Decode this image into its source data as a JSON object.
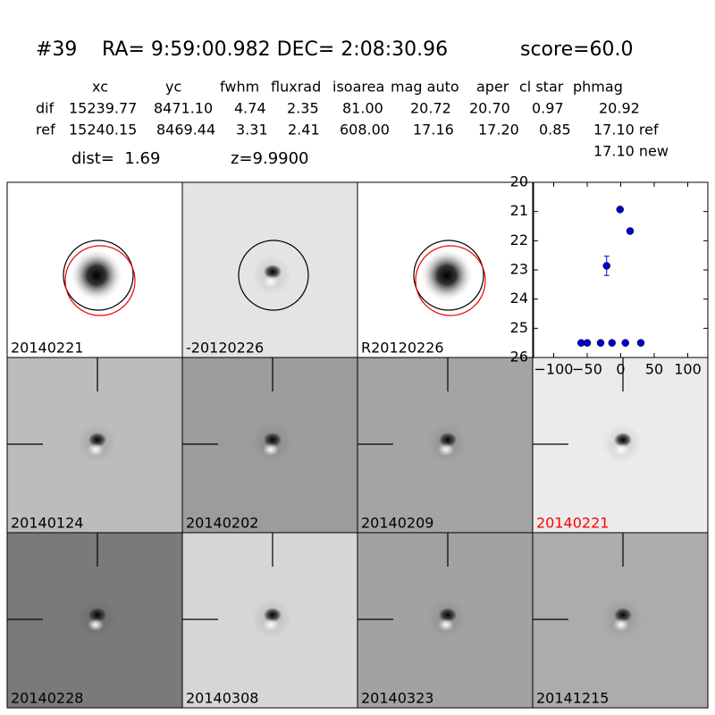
{
  "header": {
    "id": "#39",
    "coords": "RA= 9:59:00.982 DEC= 2:08:30.96",
    "score": "score=60.0"
  },
  "table": {
    "columns": [
      "xc",
      "yc",
      "fwhm",
      "fluxrad",
      "isoarea",
      "mag auto",
      "aper",
      "cl star",
      "phmag"
    ],
    "rows": [
      [
        "dif",
        "15239.77",
        "8471.10",
        "4.74",
        "2.35",
        "81.00",
        "20.72",
        "20.70",
        "0.97",
        "20.92"
      ],
      [
        "ref",
        "15240.15",
        "8469.44",
        "3.31",
        "2.41",
        "608.00",
        "17.16",
        "17.20",
        "0.85",
        "17.10 ref"
      ]
    ],
    "note": "17.10 new"
  },
  "dist": "dist=  1.69",
  "z": "z=9.9900",
  "panels": [
    {
      "label": "20140221"
    },
    {
      "label": "-20120226"
    },
    {
      "label": "R20120226"
    },
    {
      "label": "20140124"
    },
    {
      "label": "20140202"
    },
    {
      "label": "20140209"
    },
    {
      "label": "20140221",
      "color": "#ff0000"
    },
    {
      "label": "20140228"
    },
    {
      "label": "20140308"
    },
    {
      "label": "20140323"
    },
    {
      "label": "20141215"
    }
  ],
  "chart_data": {
    "type": "scatter",
    "color": "#0000cc",
    "x": [
      -59,
      -50,
      -30,
      -21,
      -13,
      -1,
      7,
      14,
      30
    ],
    "values": [
      25.5,
      25.5,
      25.5,
      22.86,
      25.5,
      20.93,
      25.5,
      21.67,
      25.5
    ],
    "errors": [
      null,
      null,
      null,
      0.33,
      null,
      null,
      null,
      0.08,
      null
    ],
    "xlim": [
      -130,
      130
    ],
    "ylim": [
      26,
      20
    ],
    "invert_y": true,
    "xticks": [
      {
        "value": -100,
        "label": "−100"
      },
      {
        "value": -50,
        "label": "−50"
      },
      0,
      50,
      100
    ],
    "yticks": [
      20,
      21,
      22,
      23,
      24,
      25,
      26
    ]
  }
}
